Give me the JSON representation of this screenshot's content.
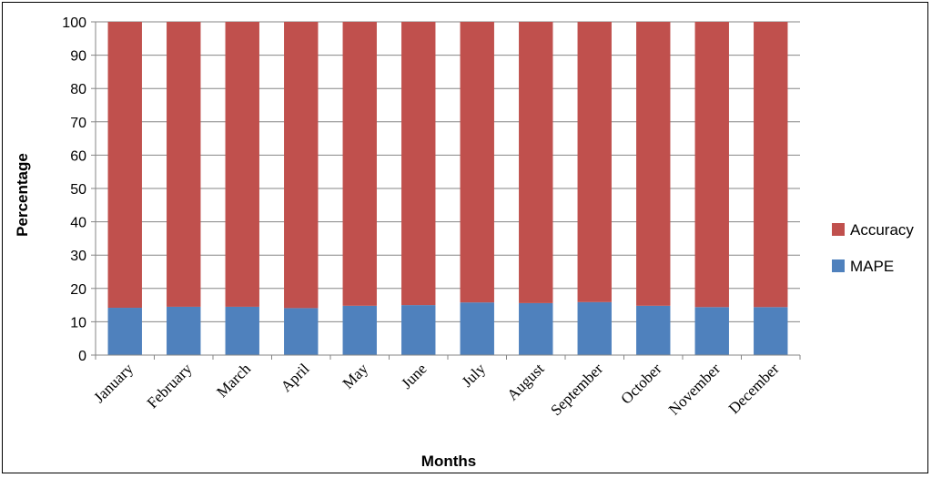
{
  "chart_data": {
    "type": "bar",
    "stacked": true,
    "categories": [
      "January",
      "February",
      "March",
      "April",
      "May",
      "June",
      "July",
      "August",
      "September",
      "October",
      "November",
      "December"
    ],
    "series": [
      {
        "name": "MAPE",
        "color": "#4f81bd",
        "values": [
          14.2,
          14.5,
          14.5,
          14.1,
          14.8,
          15.0,
          15.8,
          15.6,
          15.9,
          14.8,
          14.4,
          14.4
        ]
      },
      {
        "name": "Accuracy",
        "color": "#c0504d",
        "values": [
          85.8,
          85.5,
          85.5,
          85.9,
          85.2,
          85.0,
          84.2,
          84.4,
          84.1,
          85.2,
          85.6,
          85.6
        ]
      }
    ],
    "xlabel": "Months",
    "ylabel": "Percentage",
    "ylim": [
      0,
      100
    ],
    "yticks": [
      0,
      10,
      20,
      30,
      40,
      50,
      60,
      70,
      80,
      90,
      100
    ],
    "grid": true,
    "legend": "right",
    "legend_order": [
      "Accuracy",
      "MAPE"
    ]
  }
}
